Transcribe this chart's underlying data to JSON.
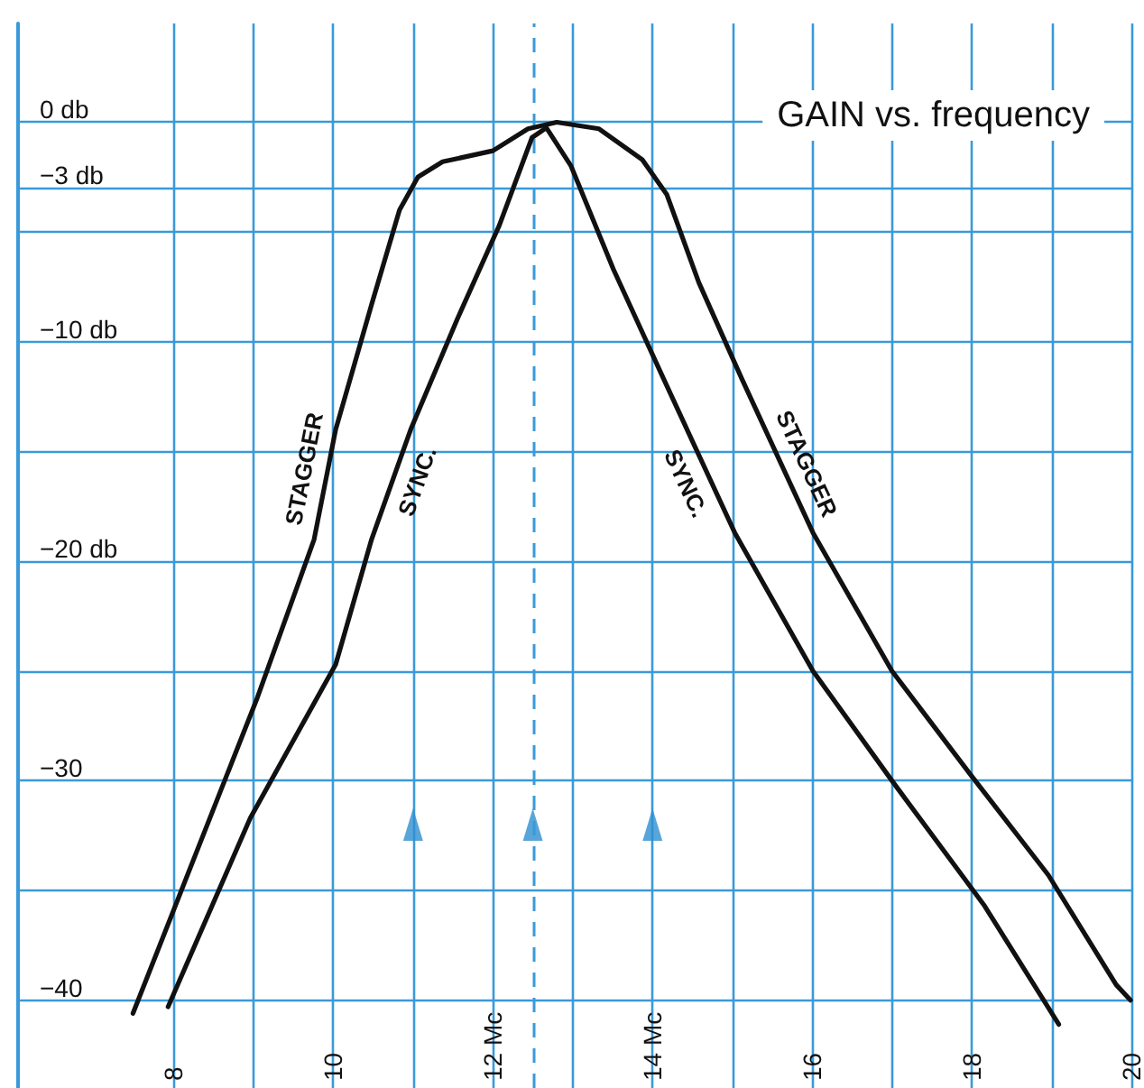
{
  "chart_data": {
    "type": "line",
    "title": "GAIN vs. frequency",
    "xlim": [
      6.05,
      20
    ],
    "ylim": [
      -44,
      4.5
    ],
    "xticks": [
      8,
      {
        "value": 9,
        "label": null
      },
      10,
      {
        "value": 11,
        "label": null
      },
      {
        "value": 12,
        "label": "12 Mc"
      },
      {
        "value": 13,
        "label": null
      },
      {
        "value": 14,
        "label": "14 Mc"
      },
      {
        "value": 15,
        "label": null
      },
      16,
      {
        "value": 17,
        "label": null
      },
      18,
      {
        "value": 19,
        "label": null
      },
      20
    ],
    "yticks": [
      {
        "value": 0,
        "label": "0 db"
      },
      {
        "value": -3,
        "label": "−3 db"
      },
      {
        "value": -5,
        "label": null
      },
      {
        "value": -10,
        "label": "−10 db"
      },
      {
        "value": -15,
        "label": null
      },
      {
        "value": -20,
        "label": "−20 db"
      },
      {
        "value": -25,
        "label": null
      },
      {
        "value": -30,
        "label": "−30"
      },
      {
        "value": -35,
        "label": null
      },
      {
        "value": -40,
        "label": "−40"
      }
    ],
    "grid": true,
    "marker": "none",
    "line_style": "solid",
    "ref_lines": [
      {
        "axis": "x",
        "value": 12.5,
        "color": "#3a9ad9",
        "line_style": "dashed"
      }
    ],
    "series": [
      {
        "name": "STAGGER",
        "color": "#111111",
        "x": [
          7.49,
          9.05,
          9.76,
          10.03,
          10.48,
          10.83,
          11.06,
          11.37,
          12.0,
          12.44,
          12.8,
          13.33,
          13.87,
          14.18,
          14.58,
          15.12,
          16.01,
          17.0,
          17.98,
          18.96,
          19.81,
          19.99
        ],
        "values": [
          -40.6,
          -26.2,
          -19,
          -14,
          -8.3,
          -4,
          -2.5,
          -1.8,
          -1.3,
          -0.3,
          0,
          -0.3,
          -1.7,
          -3.3,
          -7.3,
          -11.7,
          -18.7,
          -25,
          -29.7,
          -34.3,
          -39.3,
          -40
        ]
      },
      {
        "name": "SYNC.",
        "color": "#111111",
        "x": [
          7.93,
          8.96,
          10.03,
          10.48,
          10.97,
          11.55,
          12.08,
          12.49,
          12.67,
          12.98,
          13.51,
          14.14,
          15.03,
          16.01,
          17.0,
          18.16,
          19.09
        ],
        "values": [
          -40.3,
          -31.7,
          -24.7,
          -19,
          -14,
          -9,
          -4.7,
          -0.7,
          -0.25,
          -2,
          -6.7,
          -11.7,
          -18.7,
          -25,
          -30,
          -35.7,
          -41.1
        ]
      },
      {
        "type": "scatter",
        "color": "#2e8fcf",
        "marker": "triangle",
        "x": [
          11,
          12.5,
          14
        ],
        "values": [
          -32,
          -32,
          -32
        ]
      }
    ]
  }
}
